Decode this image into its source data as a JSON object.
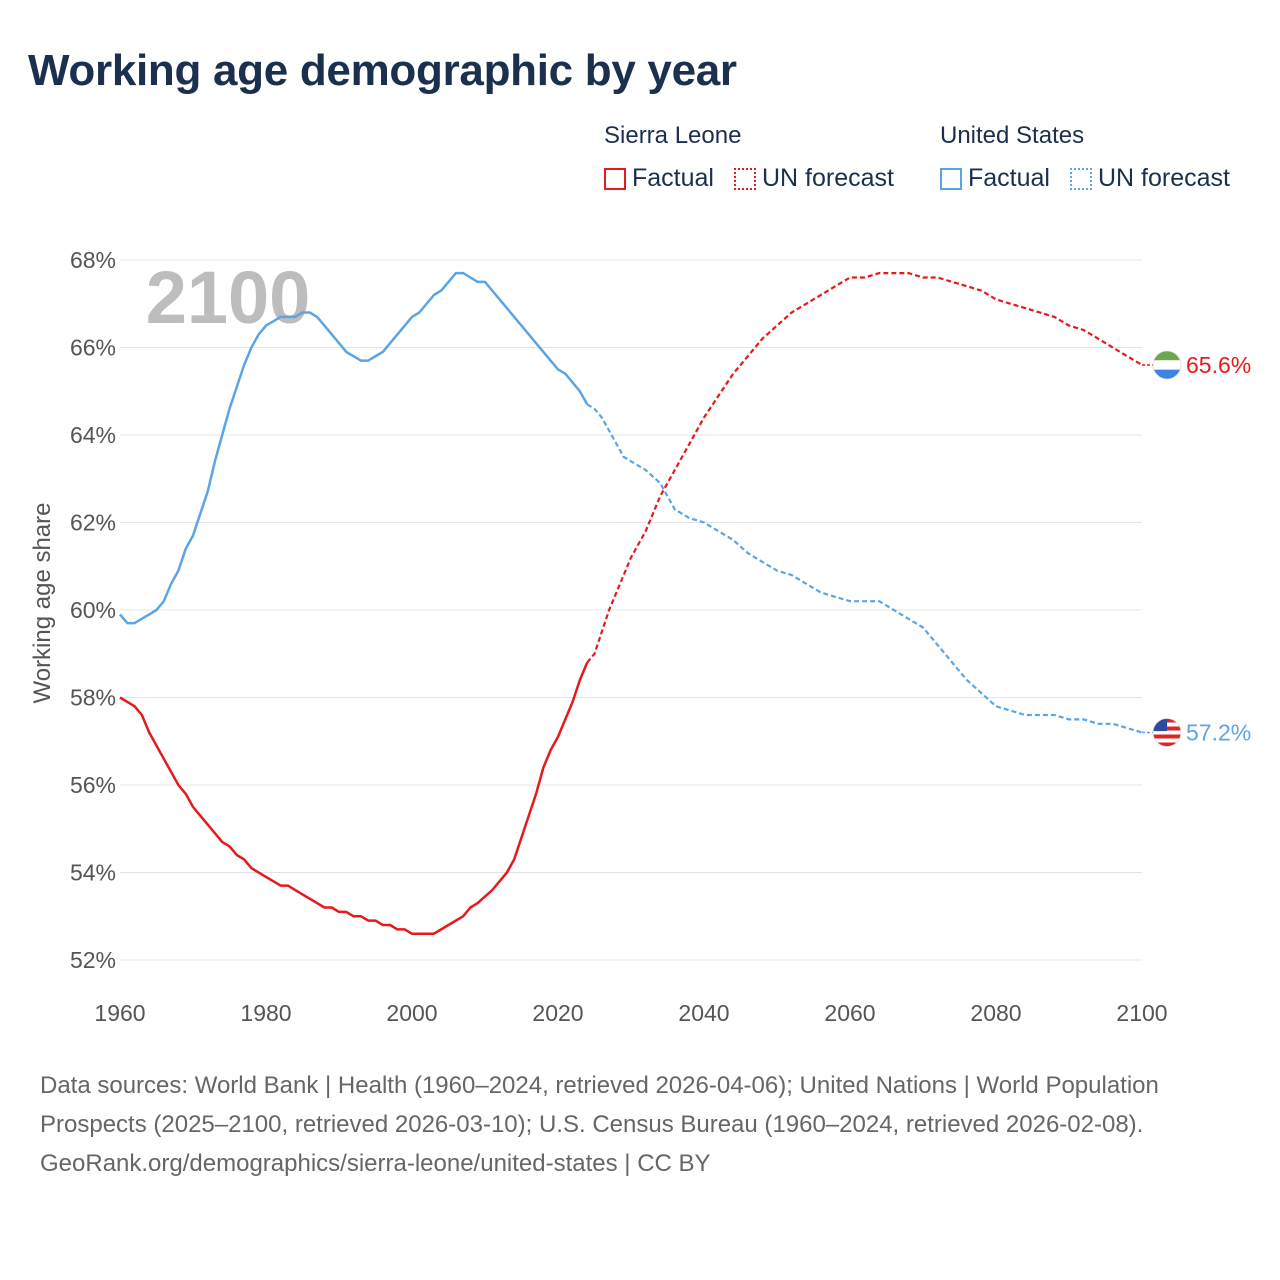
{
  "title": "Working age demographic by year",
  "legend": {
    "groups": [
      {
        "country": "Sierra Leone",
        "factual_label": "Factual",
        "forecast_label": "UN forecast",
        "color": "#e41a1c"
      },
      {
        "country": "United States",
        "factual_label": "Factual",
        "forecast_label": "UN forecast",
        "color": "#5ba4e6"
      }
    ]
  },
  "footer": {
    "sources": "Data sources: World Bank | Health (1960–2024, retrieved 2026-04-06); United Nations | World Population Prospects (2025–2100, retrieved 2026-03-10); U.S. Census Bureau (1960–2024, retrieved 2026-02-08).",
    "credit": "GeoRank.org/demographics/sierra-leone/united-states | CC BY"
  },
  "chart_data": {
    "type": "line",
    "ylabel": "Working age share",
    "xlabel": "",
    "xlim": [
      1960,
      2100
    ],
    "ylim": [
      52,
      68
    ],
    "x_ticks": [
      1960,
      1980,
      2000,
      2020,
      2040,
      2060,
      2080,
      2100
    ],
    "y_ticks": [
      52,
      54,
      56,
      58,
      60,
      62,
      64,
      66,
      68
    ],
    "y_tick_labels": [
      "52%",
      "54%",
      "56%",
      "58%",
      "60%",
      "62%",
      "64%",
      "66%",
      "68%"
    ],
    "grid": true,
    "year_watermark": "2100",
    "forecast_start": 2024,
    "series": [
      {
        "name": "Sierra Leone",
        "color": "#e41a1c",
        "end_label": "65.6%",
        "flag_icon": "sierra-leone-flag-icon",
        "points": [
          [
            1960,
            58.0
          ],
          [
            1962,
            57.8
          ],
          [
            1963,
            57.6
          ],
          [
            1964,
            57.2
          ],
          [
            1966,
            56.6
          ],
          [
            1968,
            56.0
          ],
          [
            1969,
            55.8
          ],
          [
            1970,
            55.5
          ],
          [
            1972,
            55.1
          ],
          [
            1974,
            54.7
          ],
          [
            1975,
            54.6
          ],
          [
            1976,
            54.4
          ],
          [
            1977,
            54.3
          ],
          [
            1978,
            54.1
          ],
          [
            1980,
            53.9
          ],
          [
            1982,
            53.7
          ],
          [
            1983,
            53.7
          ],
          [
            1985,
            53.5
          ],
          [
            1987,
            53.3
          ],
          [
            1988,
            53.2
          ],
          [
            1989,
            53.2
          ],
          [
            1990,
            53.1
          ],
          [
            1991,
            53.1
          ],
          [
            1992,
            53.0
          ],
          [
            1993,
            53.0
          ],
          [
            1994,
            52.9
          ],
          [
            1995,
            52.9
          ],
          [
            1996,
            52.8
          ],
          [
            1997,
            52.8
          ],
          [
            1998,
            52.7
          ],
          [
            1999,
            52.7
          ],
          [
            2000,
            52.6
          ],
          [
            2003,
            52.6
          ],
          [
            2005,
            52.8
          ],
          [
            2007,
            53.0
          ],
          [
            2008,
            53.2
          ],
          [
            2009,
            53.3
          ],
          [
            2011,
            53.6
          ],
          [
            2012,
            53.8
          ],
          [
            2013,
            54.0
          ],
          [
            2014,
            54.3
          ],
          [
            2015,
            54.8
          ],
          [
            2016,
            55.3
          ],
          [
            2017,
            55.8
          ],
          [
            2018,
            56.4
          ],
          [
            2019,
            56.8
          ],
          [
            2020,
            57.1
          ],
          [
            2021,
            57.5
          ],
          [
            2022,
            57.9
          ],
          [
            2023,
            58.4
          ],
          [
            2024,
            58.8
          ],
          [
            2025,
            59.0
          ],
          [
            2026,
            59.5
          ],
          [
            2027,
            60.0
          ],
          [
            2028,
            60.4
          ],
          [
            2029,
            60.8
          ],
          [
            2030,
            61.2
          ],
          [
            2032,
            61.8
          ],
          [
            2034,
            62.6
          ],
          [
            2036,
            63.2
          ],
          [
            2038,
            63.8
          ],
          [
            2040,
            64.4
          ],
          [
            2042,
            64.9
          ],
          [
            2044,
            65.4
          ],
          [
            2046,
            65.8
          ],
          [
            2048,
            66.2
          ],
          [
            2050,
            66.5
          ],
          [
            2052,
            66.8
          ],
          [
            2054,
            67.0
          ],
          [
            2056,
            67.2
          ],
          [
            2058,
            67.4
          ],
          [
            2060,
            67.6
          ],
          [
            2062,
            67.6
          ],
          [
            2064,
            67.7
          ],
          [
            2066,
            67.7
          ],
          [
            2068,
            67.7
          ],
          [
            2070,
            67.6
          ],
          [
            2072,
            67.6
          ],
          [
            2074,
            67.5
          ],
          [
            2076,
            67.4
          ],
          [
            2078,
            67.3
          ],
          [
            2080,
            67.1
          ],
          [
            2082,
            67.0
          ],
          [
            2084,
            66.9
          ],
          [
            2086,
            66.8
          ],
          [
            2088,
            66.7
          ],
          [
            2090,
            66.5
          ],
          [
            2092,
            66.4
          ],
          [
            2094,
            66.2
          ],
          [
            2096,
            66.0
          ],
          [
            2098,
            65.8
          ],
          [
            2100,
            65.6
          ]
        ]
      },
      {
        "name": "United States",
        "color": "#5ba4e6",
        "end_label": "57.2%",
        "flag_icon": "united-states-flag-icon",
        "points": [
          [
            1960,
            59.9
          ],
          [
            1961,
            59.7
          ],
          [
            1962,
            59.7
          ],
          [
            1964,
            59.9
          ],
          [
            1965,
            60.0
          ],
          [
            1966,
            60.2
          ],
          [
            1967,
            60.6
          ],
          [
            1968,
            60.9
          ],
          [
            1969,
            61.4
          ],
          [
            1970,
            61.7
          ],
          [
            1971,
            62.2
          ],
          [
            1972,
            62.7
          ],
          [
            1973,
            63.4
          ],
          [
            1974,
            64.0
          ],
          [
            1975,
            64.6
          ],
          [
            1976,
            65.1
          ],
          [
            1977,
            65.6
          ],
          [
            1978,
            66.0
          ],
          [
            1979,
            66.3
          ],
          [
            1980,
            66.5
          ],
          [
            1981,
            66.6
          ],
          [
            1982,
            66.7
          ],
          [
            1984,
            66.7
          ],
          [
            1985,
            66.8
          ],
          [
            1986,
            66.8
          ],
          [
            1987,
            66.7
          ],
          [
            1988,
            66.5
          ],
          [
            1990,
            66.1
          ],
          [
            1991,
            65.9
          ],
          [
            1993,
            65.7
          ],
          [
            1994,
            65.7
          ],
          [
            1996,
            65.9
          ],
          [
            1998,
            66.3
          ],
          [
            2000,
            66.7
          ],
          [
            2001,
            66.8
          ],
          [
            2003,
            67.2
          ],
          [
            2004,
            67.3
          ],
          [
            2005,
            67.5
          ],
          [
            2006,
            67.7
          ],
          [
            2007,
            67.7
          ],
          [
            2009,
            67.5
          ],
          [
            2010,
            67.5
          ],
          [
            2012,
            67.1
          ],
          [
            2014,
            66.7
          ],
          [
            2016,
            66.3
          ],
          [
            2018,
            65.9
          ],
          [
            2020,
            65.5
          ],
          [
            2021,
            65.4
          ],
          [
            2023,
            65.0
          ],
          [
            2024,
            64.7
          ],
          [
            2025,
            64.6
          ],
          [
            2026,
            64.4
          ],
          [
            2027,
            64.1
          ],
          [
            2028,
            63.8
          ],
          [
            2029,
            63.5
          ],
          [
            2030,
            63.4
          ],
          [
            2032,
            63.2
          ],
          [
            2034,
            62.9
          ],
          [
            2035,
            62.6
          ],
          [
            2036,
            62.3
          ],
          [
            2038,
            62.1
          ],
          [
            2040,
            62.0
          ],
          [
            2042,
            61.8
          ],
          [
            2044,
            61.6
          ],
          [
            2046,
            61.3
          ],
          [
            2048,
            61.1
          ],
          [
            2050,
            60.9
          ],
          [
            2052,
            60.8
          ],
          [
            2054,
            60.6
          ],
          [
            2056,
            60.4
          ],
          [
            2058,
            60.3
          ],
          [
            2060,
            60.2
          ],
          [
            2062,
            60.2
          ],
          [
            2064,
            60.2
          ],
          [
            2066,
            60.0
          ],
          [
            2068,
            59.8
          ],
          [
            2070,
            59.6
          ],
          [
            2072,
            59.2
          ],
          [
            2074,
            58.8
          ],
          [
            2076,
            58.4
          ],
          [
            2078,
            58.1
          ],
          [
            2080,
            57.8
          ],
          [
            2082,
            57.7
          ],
          [
            2084,
            57.6
          ],
          [
            2086,
            57.6
          ],
          [
            2088,
            57.6
          ],
          [
            2090,
            57.5
          ],
          [
            2092,
            57.5
          ],
          [
            2094,
            57.4
          ],
          [
            2096,
            57.4
          ],
          [
            2098,
            57.3
          ],
          [
            2100,
            57.2
          ]
        ]
      }
    ]
  }
}
